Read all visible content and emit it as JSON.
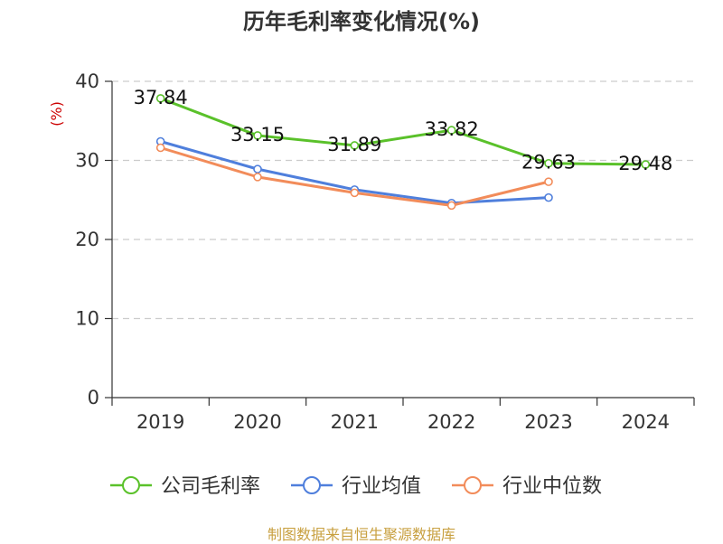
{
  "colors": {
    "gross_margin": "#5ac12a",
    "industry_avg": "#4f7fdc",
    "industry_median": "#f28c5a",
    "grid": "#cccccc",
    "axis": "#333333",
    "unit": "#cc0000",
    "source": "#c8a040"
  },
  "chart_data": {
    "type": "line",
    "title": "历年毛利率变化情况(%)",
    "ylabel": "(%)",
    "xlabel": "",
    "categories": [
      "2019",
      "2020",
      "2021",
      "2022",
      "2023",
      "2024"
    ],
    "ylim": [
      0,
      40
    ],
    "yticks": [
      0,
      10,
      20,
      30,
      40
    ],
    "grid": true,
    "legend_position": "bottom",
    "series": [
      {
        "name": "公司毛利率",
        "color": "#5ac12a",
        "values": [
          37.84,
          33.15,
          31.89,
          33.82,
          29.63,
          29.48
        ],
        "labels": [
          "37.84",
          "33.15",
          "31.89",
          "33.82",
          "29.63",
          "29.48"
        ]
      },
      {
        "name": "行业均值",
        "color": "#4f7fdc",
        "values": [
          32.4,
          28.9,
          26.3,
          24.6,
          25.3,
          null
        ]
      },
      {
        "name": "行业中位数",
        "color": "#f28c5a",
        "values": [
          31.6,
          27.9,
          25.9,
          24.3,
          27.3,
          null
        ]
      }
    ]
  },
  "source_note": "制图数据来自恒生聚源数据库"
}
